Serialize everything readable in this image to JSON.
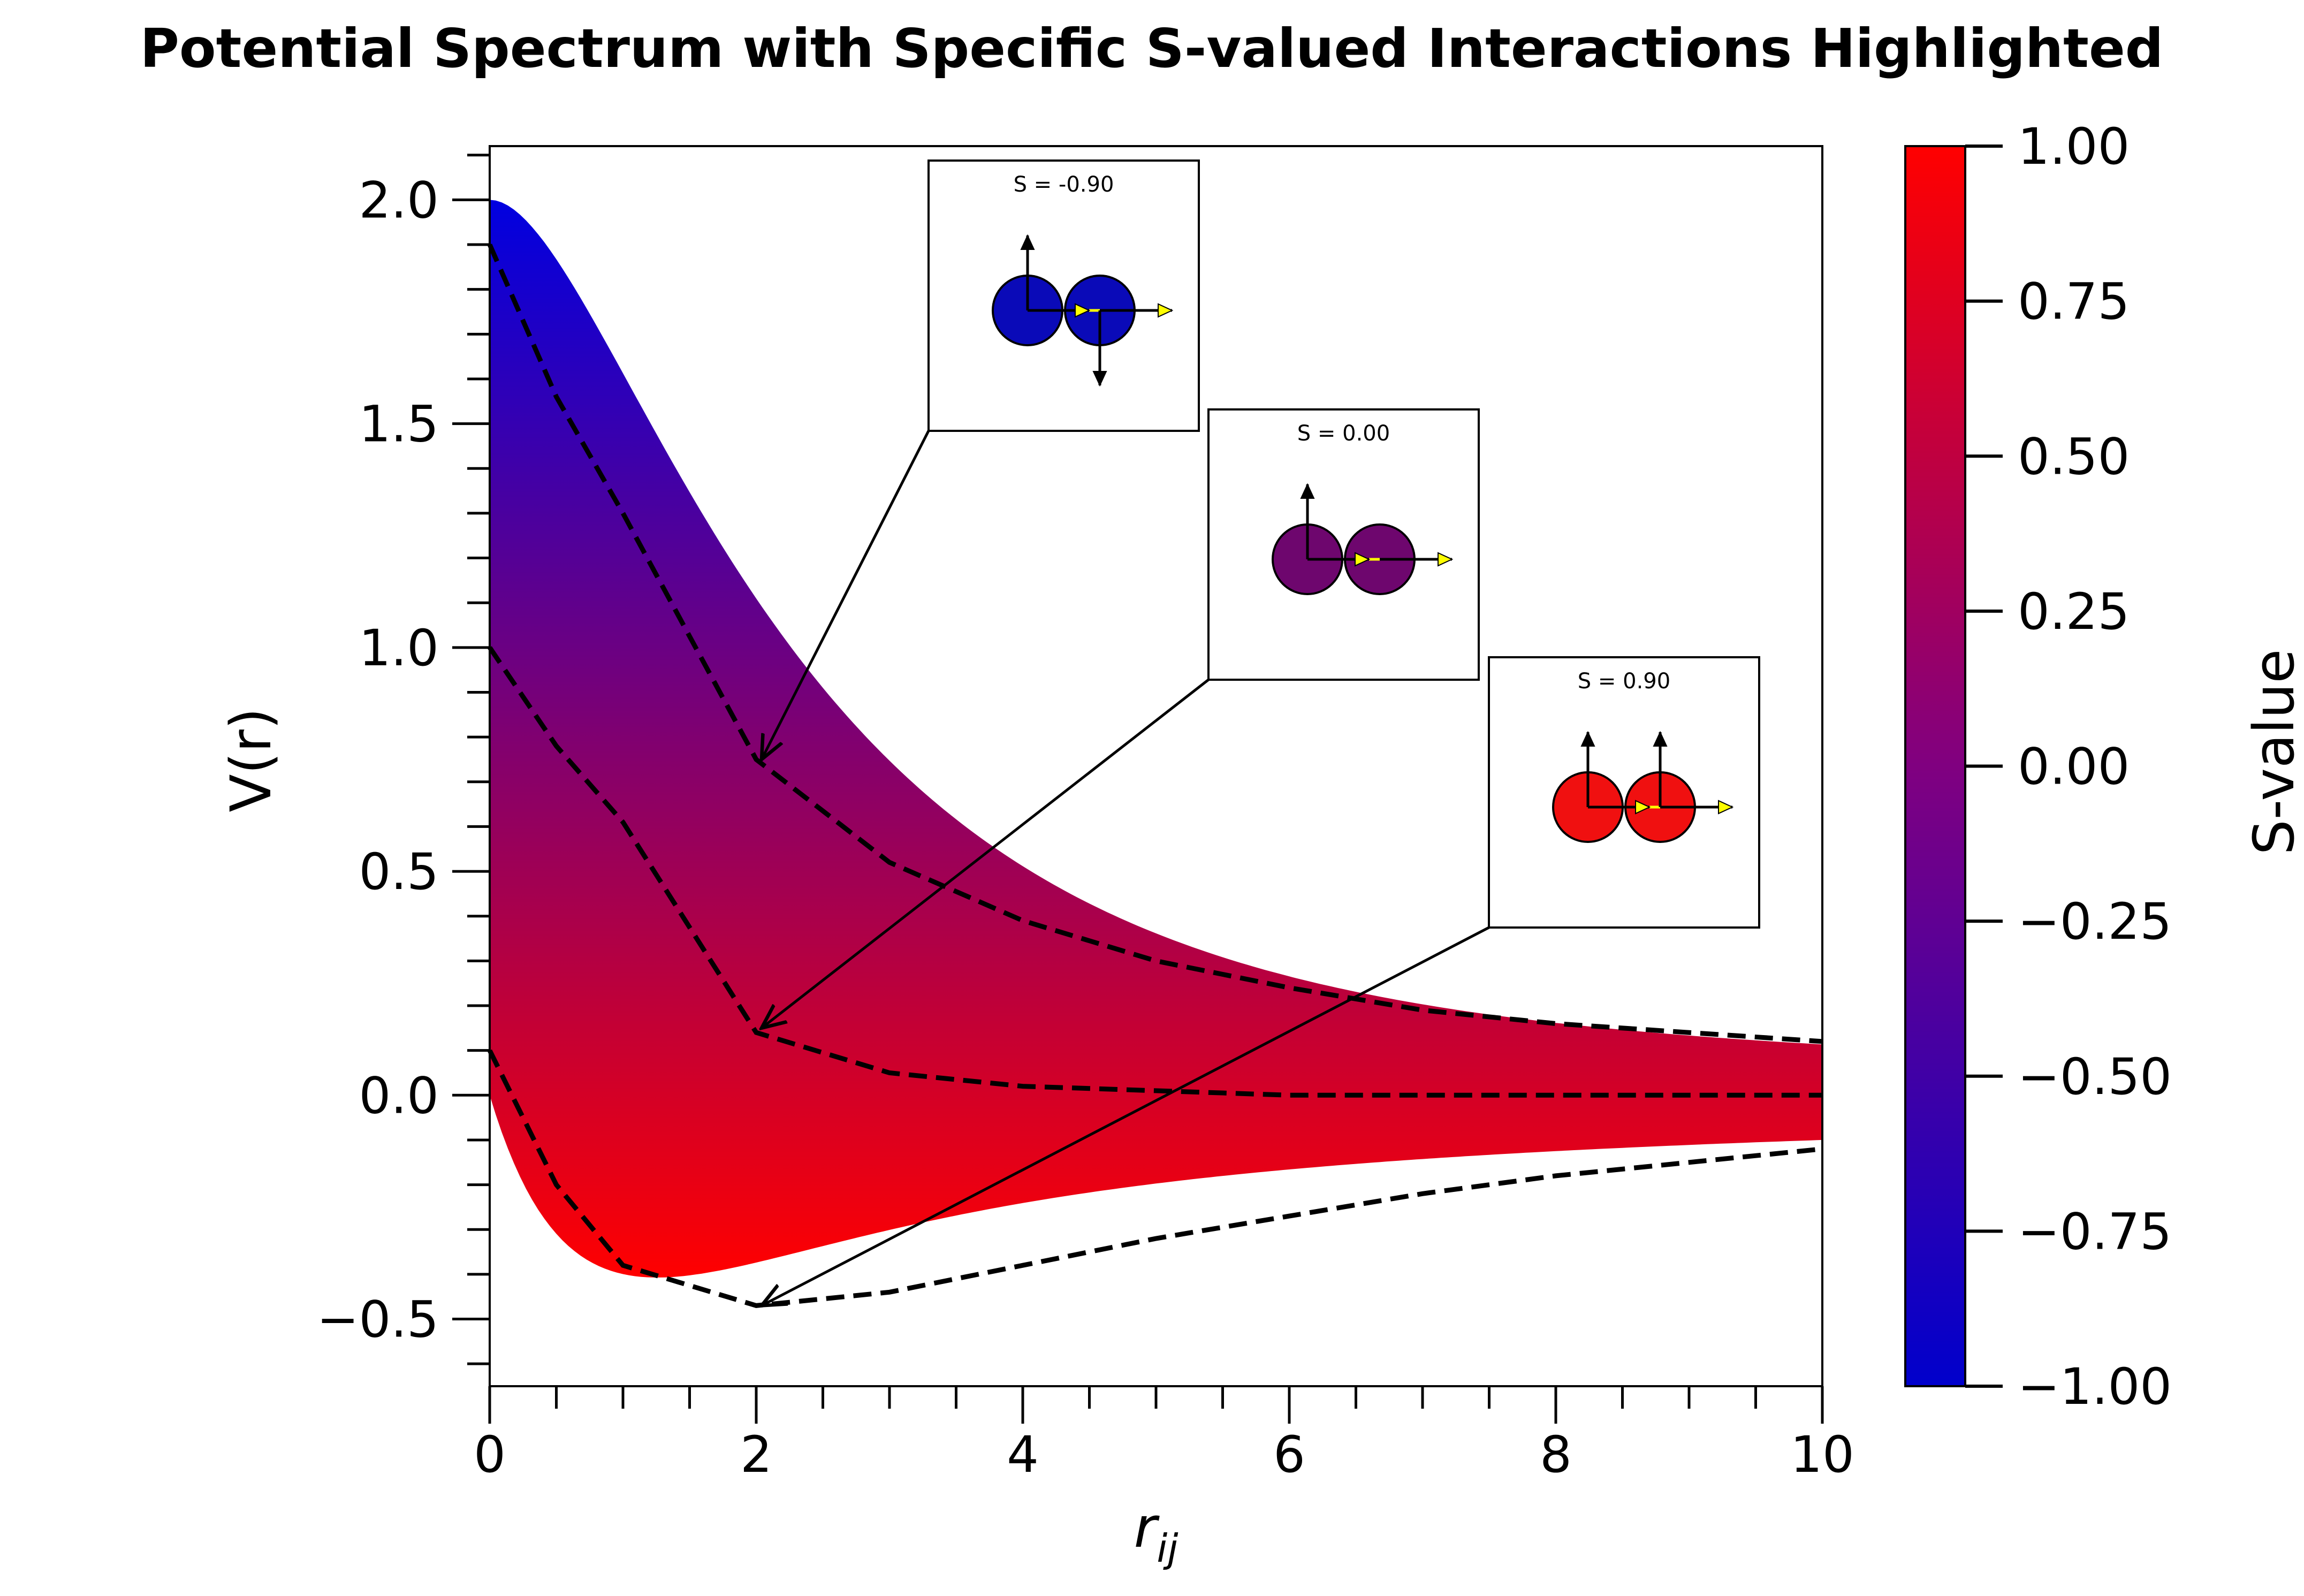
{
  "chart_data": {
    "type": "area",
    "title": "Potential Spectrum with Specific S-valued Interactions Highlighted",
    "xlabel": "r",
    "xlabel_sub": "ij",
    "ylabel": "V(r)",
    "xlim": [
      0,
      10
    ],
    "ylim": [
      -0.65,
      2.12
    ],
    "x_ticks": [
      0,
      2,
      4,
      6,
      8,
      10
    ],
    "x_tick_labels": [
      "0",
      "2",
      "4",
      "6",
      "8",
      "10"
    ],
    "y_ticks": [
      2.0,
      1.5,
      1.0,
      0.5,
      0.0,
      -0.5
    ],
    "y_tick_labels": [
      "2.0",
      "1.5",
      "1.0",
      "0.5",
      "0.0",
      "−0.5"
    ],
    "grid": false,
    "band": {
      "description": "V(r) = (1 - S) e^{-r/2} - S (1 - e^{-r})^2 / r, S from -1 to 1",
      "s_range": [
        -1,
        1
      ],
      "upper_edge_S": -1,
      "lower_edge_S": 1
    },
    "series": [
      {
        "name": "S = -0.90",
        "style": "dashed",
        "x": [
          0,
          0.5,
          1,
          2,
          3,
          4,
          5,
          6,
          7,
          8,
          9,
          10
        ],
        "y": [
          1.9,
          1.56,
          1.3,
          0.75,
          0.52,
          0.39,
          0.3,
          0.24,
          0.19,
          0.16,
          0.14,
          0.12
        ]
      },
      {
        "name": "S = 0.00",
        "style": "dashed",
        "x": [
          0,
          0.5,
          1,
          2,
          3,
          4,
          5,
          6,
          7,
          8,
          9,
          10
        ],
        "y": [
          1.0,
          0.78,
          0.61,
          0.14,
          0.05,
          0.02,
          0.01,
          0.0,
          0.0,
          0.0,
          0.0,
          0.0
        ]
      },
      {
        "name": "S = 0.90",
        "style": "dashed",
        "x": [
          0,
          0.5,
          1,
          2,
          3,
          4,
          5,
          6,
          7,
          8,
          9,
          10
        ],
        "y": [
          0.1,
          -0.2,
          -0.38,
          -0.47,
          -0.44,
          -0.38,
          -0.32,
          -0.27,
          -0.22,
          -0.18,
          -0.15,
          -0.12
        ]
      }
    ],
    "annotations": [
      {
        "label": "S = -0.90",
        "arrow_to": [
          2.0,
          0.75
        ],
        "inset_color": "#0a0ab8",
        "spins": {
          "left_up": true,
          "left_down": false,
          "right_up": false,
          "right_down": true
        }
      },
      {
        "label": "S = 0.00",
        "arrow_to": [
          2.0,
          0.15
        ],
        "inset_color": "#6e066e",
        "spins": {
          "left_up": true,
          "left_down": false,
          "right_up": false,
          "right_down": false
        }
      },
      {
        "label": "S = 0.90",
        "arrow_to": [
          2.0,
          -0.47
        ],
        "inset_color": "#f01010",
        "spins": {
          "left_up": true,
          "left_down": false,
          "right_up": true,
          "right_down": false
        }
      }
    ],
    "colorbar": {
      "label": "S-value",
      "range": [
        -1,
        1
      ],
      "colors": {
        "low": "#0000cc",
        "mid": "#800080",
        "high": "#ff0000"
      },
      "ticks": [
        1.0,
        0.75,
        0.5,
        0.25,
        0.0,
        -0.25,
        -0.5,
        -0.75,
        -1.0
      ],
      "tick_labels": [
        "1.00",
        "0.75",
        "0.50",
        "0.25",
        "0.00",
        "−0.25",
        "−0.50",
        "−0.75",
        "−1.00"
      ]
    }
  }
}
